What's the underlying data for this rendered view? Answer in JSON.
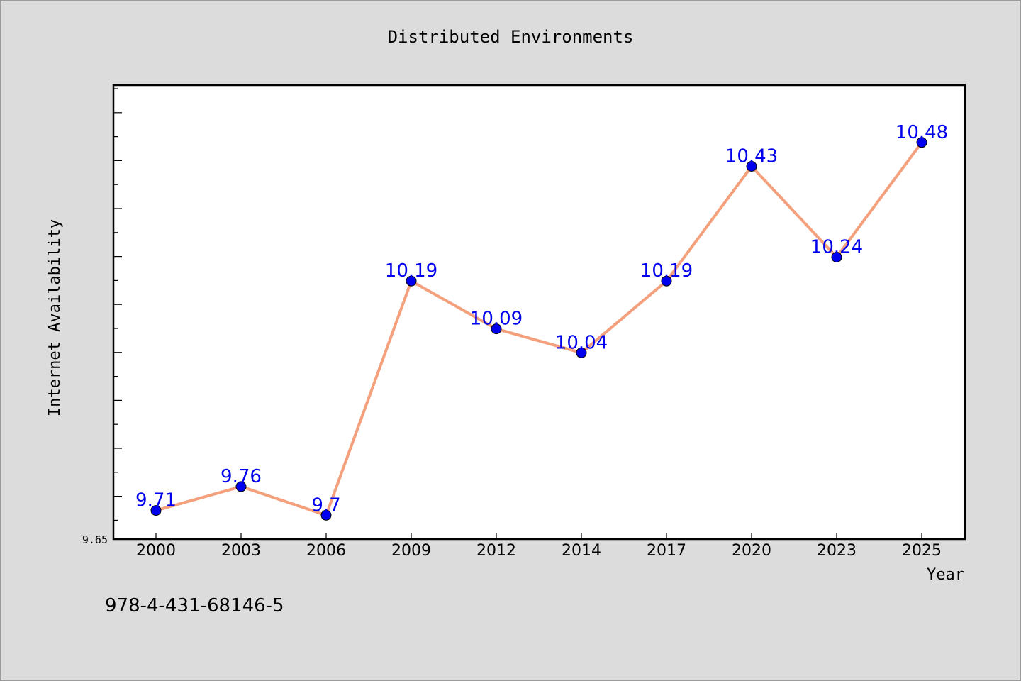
{
  "chart_data": {
    "type": "line",
    "title": "Distributed Environments",
    "xlabel": "Year",
    "ylabel": "Internet Availability",
    "categories": [
      "2000",
      "2003",
      "2006",
      "2009",
      "2012",
      "2014",
      "2017",
      "2020",
      "2023",
      "2025"
    ],
    "series": [
      {
        "values": [
          9.71,
          9.76,
          9.7,
          10.19,
          10.09,
          10.04,
          10.19,
          10.43,
          10.24,
          10.48
        ],
        "labels": [
          "9.71",
          "9.76",
          "9.7",
          "10.19",
          "10.09",
          "10.04",
          "10.19",
          "10.43",
          "10.24",
          "10.48"
        ],
        "line_color": "#f4a07c",
        "marker_color": "#0000ee",
        "label_color": "#0000ee"
      }
    ],
    "y_tick_label": "9.65",
    "ylim": [
      9.65,
      10.6
    ],
    "grid": false,
    "legend": "none"
  },
  "footer_text": "978-4-431-68146-5",
  "colors": {
    "background": "#dcdcdc",
    "plot_background": "#ffffff",
    "axis": "#000000"
  }
}
